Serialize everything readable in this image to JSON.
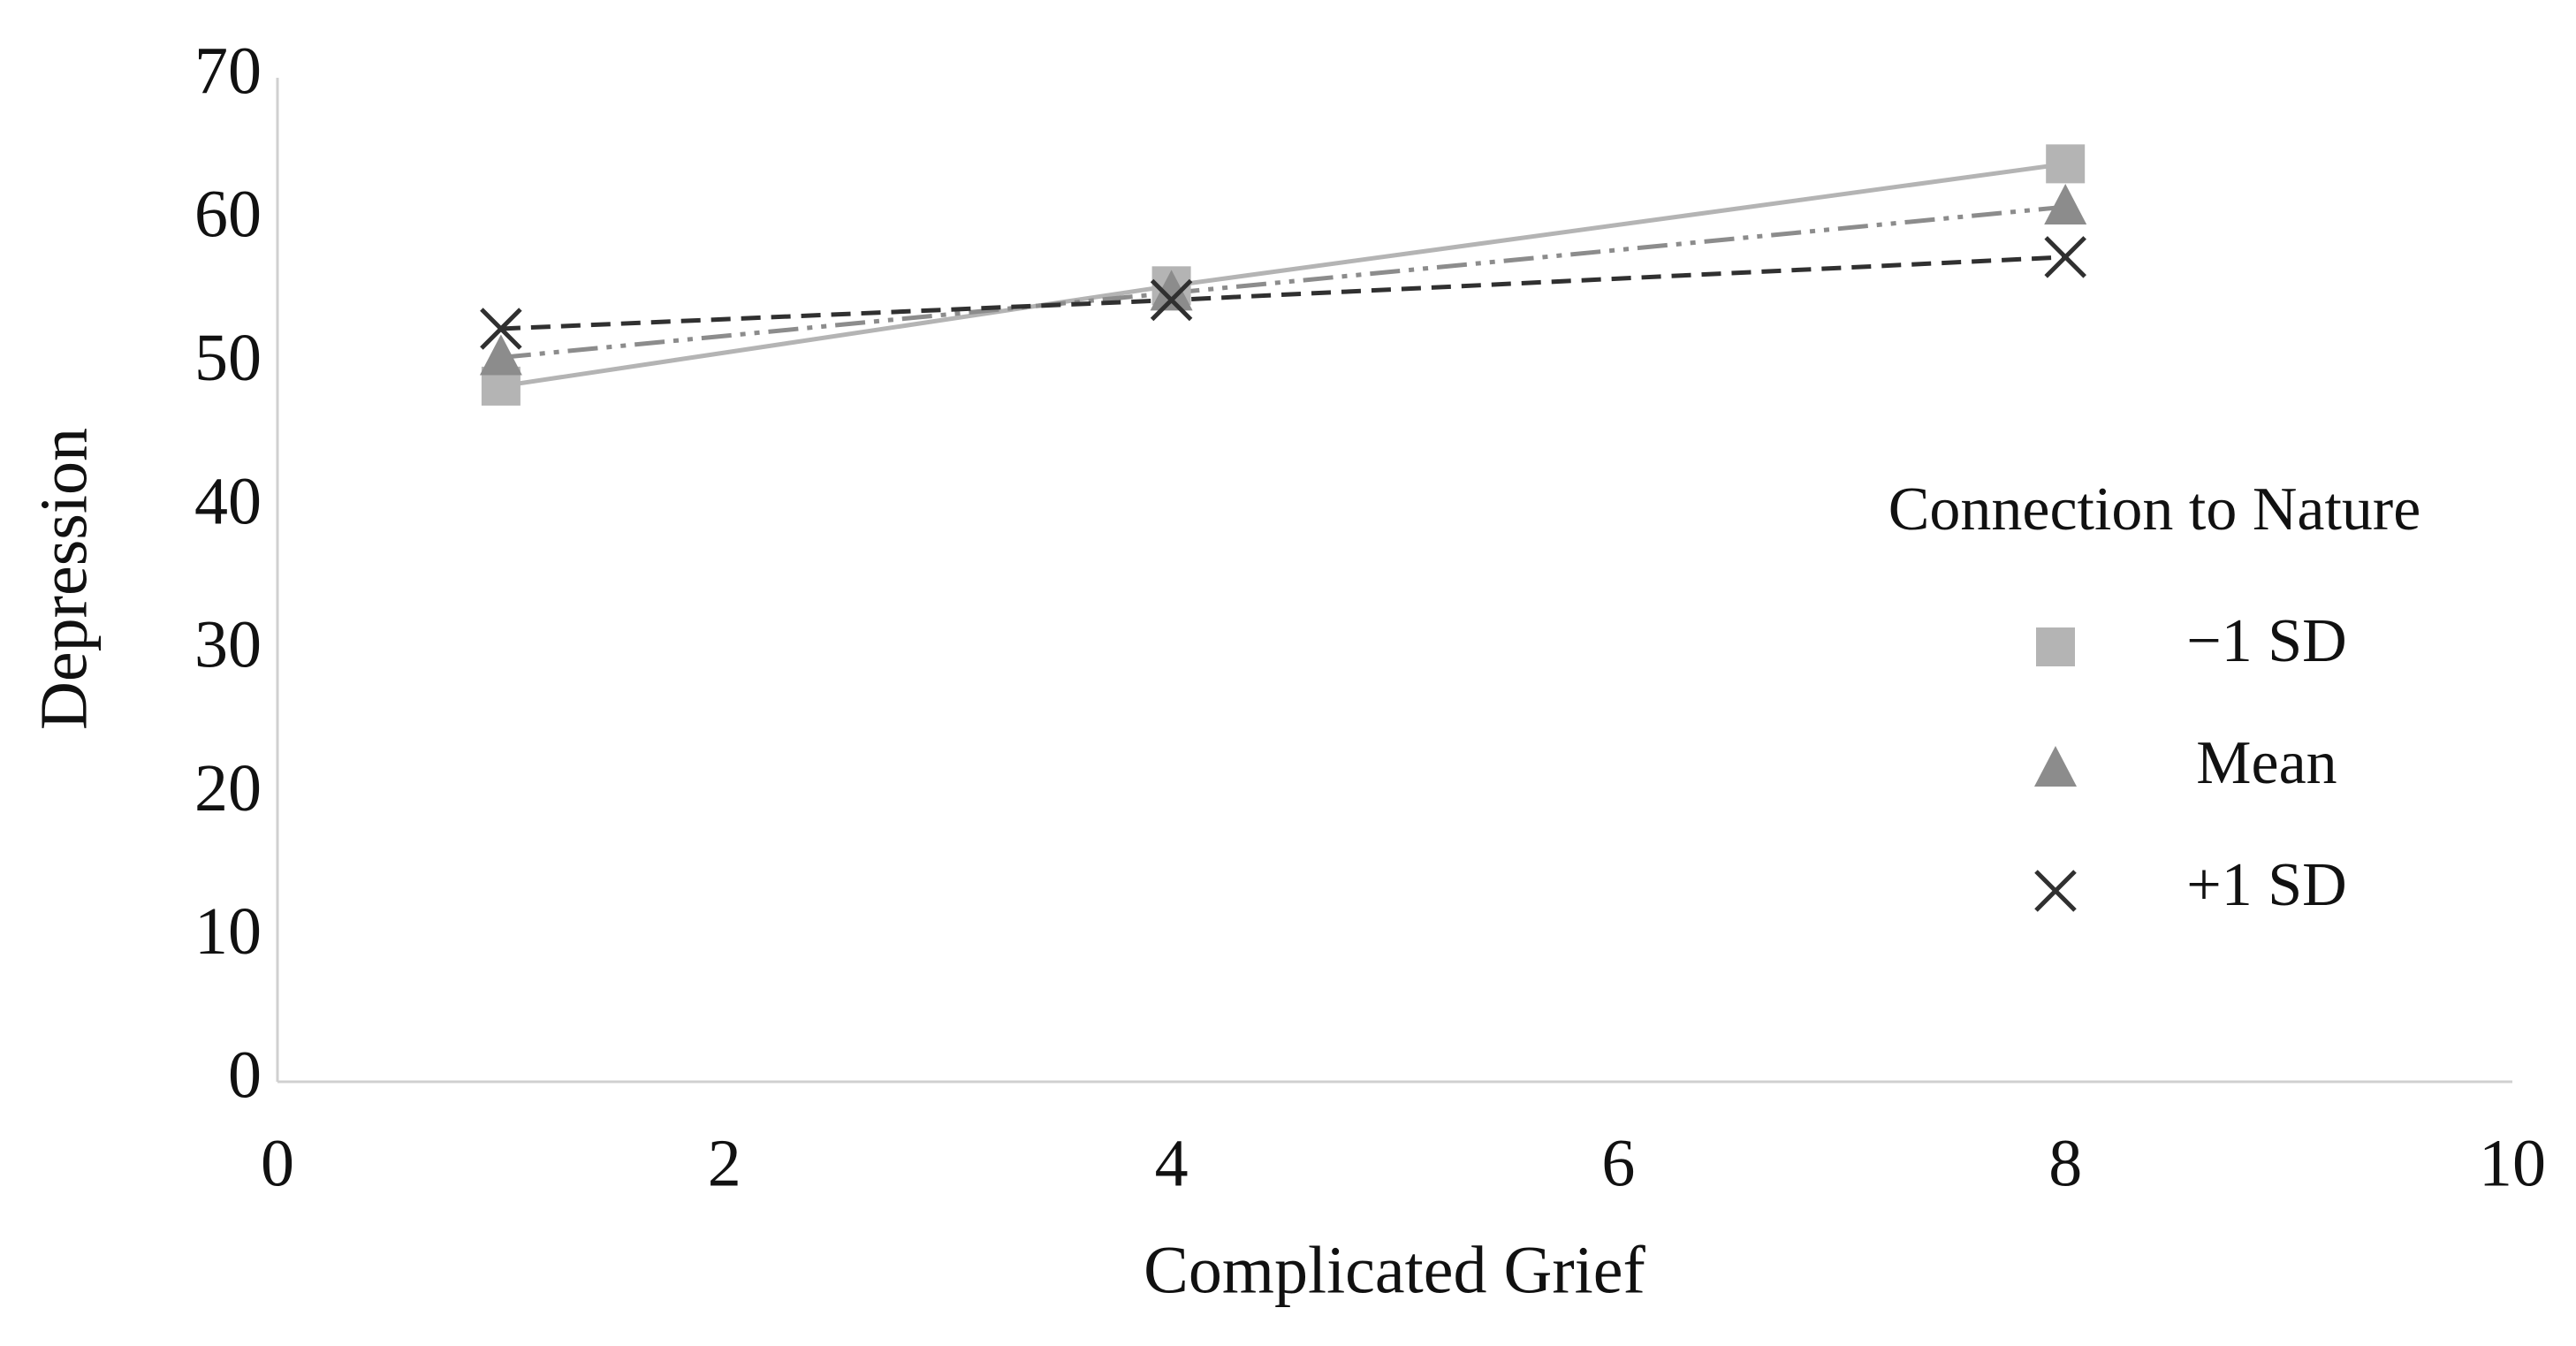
{
  "chart_data": {
    "type": "line",
    "xlabel": "Complicated Grief",
    "ylabel": "Depression",
    "x": [
      1,
      4,
      8
    ],
    "xlim": [
      0,
      10
    ],
    "xticks": [
      0,
      2,
      4,
      6,
      8,
      10
    ],
    "ylim": [
      0,
      70
    ],
    "yticks": [
      0,
      10,
      20,
      30,
      40,
      50,
      60,
      70
    ],
    "grid": false,
    "legend_title": "Connection to Nature",
    "legend_position": "right",
    "series": [
      {
        "name": "−1 SD",
        "color": "#b4b4b4",
        "marker": "square",
        "dash": "solid",
        "values": [
          48.5,
          55.5,
          64
        ]
      },
      {
        "name": "Mean",
        "color": "#8c8c8c",
        "marker": "triangle",
        "dash": "dash-dot-dot",
        "values": [
          50.5,
          55,
          61
        ]
      },
      {
        "name": "+1 SD",
        "color": "#303030",
        "marker": "x",
        "dash": "dashed",
        "values": [
          52.5,
          54.5,
          57.5
        ]
      }
    ]
  }
}
